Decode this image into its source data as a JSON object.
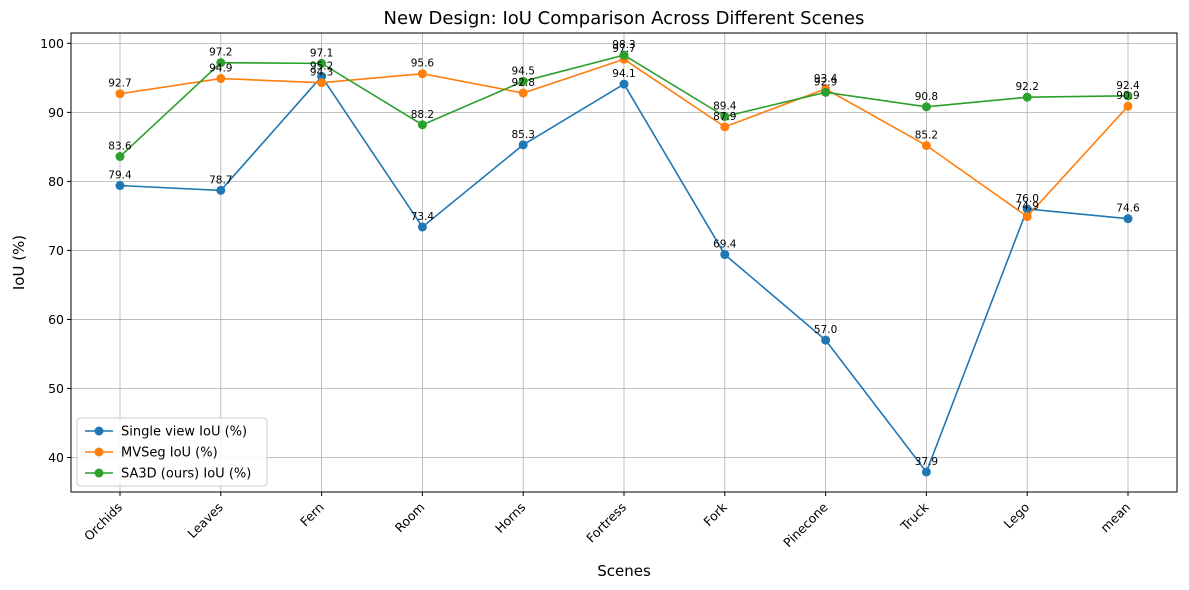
{
  "chart_data": {
    "type": "line",
    "title": "New Design: IoU Comparison Across Different Scenes",
    "xlabel": "Scenes",
    "ylabel": "IoU (%)",
    "categories": [
      "Orchids",
      "Leaves",
      "Fern",
      "Room",
      "Horns",
      "Fortress",
      "Fork",
      "Pinecone",
      "Truck",
      "Lego",
      "mean"
    ],
    "ylim": [
      35,
      101.5
    ],
    "yticks": [
      40,
      50,
      60,
      70,
      80,
      90,
      100
    ],
    "grid": true,
    "legend_position": "lower-left",
    "series": [
      {
        "name": "Single view IoU (%)",
        "color": "#1f77b4",
        "values": [
          79.4,
          78.7,
          95.2,
          73.4,
          85.3,
          94.1,
          69.4,
          57.0,
          37.9,
          76.0,
          74.6
        ]
      },
      {
        "name": "MVSeg IoU (%)",
        "color": "#ff7f0e",
        "values": [
          92.7,
          94.9,
          94.3,
          95.6,
          92.8,
          97.7,
          87.9,
          93.4,
          85.2,
          74.9,
          90.9
        ]
      },
      {
        "name": "SA3D (ours) IoU (%)",
        "color": "#2ca02c",
        "values": [
          83.6,
          97.2,
          97.1,
          88.2,
          94.5,
          98.3,
          89.4,
          92.9,
          90.8,
          92.2,
          92.4
        ]
      }
    ]
  }
}
